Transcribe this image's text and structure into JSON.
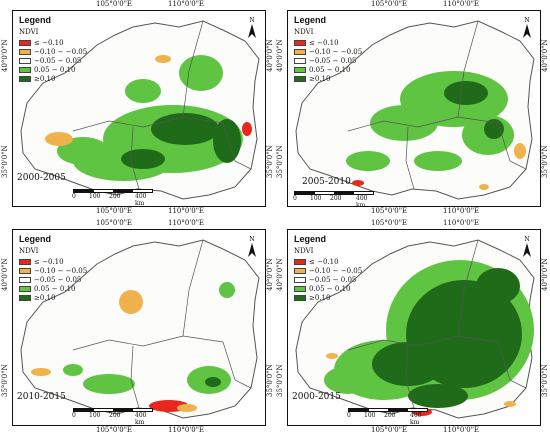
{
  "legend": {
    "title": "Legend",
    "subtitle": "NDVI",
    "classes": [
      {
        "label": "≤ −0.10",
        "color": "#e8281e"
      },
      {
        "label": "−0.10 − −0.05",
        "color": "#f0b24a"
      },
      {
        "label": "−0.05 − 0.05",
        "color": "#ffffff"
      },
      {
        "label": "0.05 − 0.10",
        "color": "#5ec442"
      },
      {
        "label": "≥0.10",
        "color": "#1f6b1a"
      }
    ]
  },
  "ticks": {
    "lon_a": "105°0'0\"E",
    "lon_b": "110°0'0\"E",
    "lat_a": "40°0'0\"N",
    "lat_b": "35°0'0\"N"
  },
  "scale": {
    "l0": "0",
    "l1": "100",
    "l2": "200",
    "l3": "400 km"
  },
  "north_label": "N",
  "panels": [
    {
      "id": "p1",
      "period": "2000-2005",
      "dominant": "mixed"
    },
    {
      "id": "p2",
      "period": "2005-2010",
      "dominant": "moderate-green"
    },
    {
      "id": "p3",
      "period": "2010-2015",
      "dominant": "sparse"
    },
    {
      "id": "p4",
      "period": "2000-2015",
      "dominant": "dense-green"
    }
  ]
}
